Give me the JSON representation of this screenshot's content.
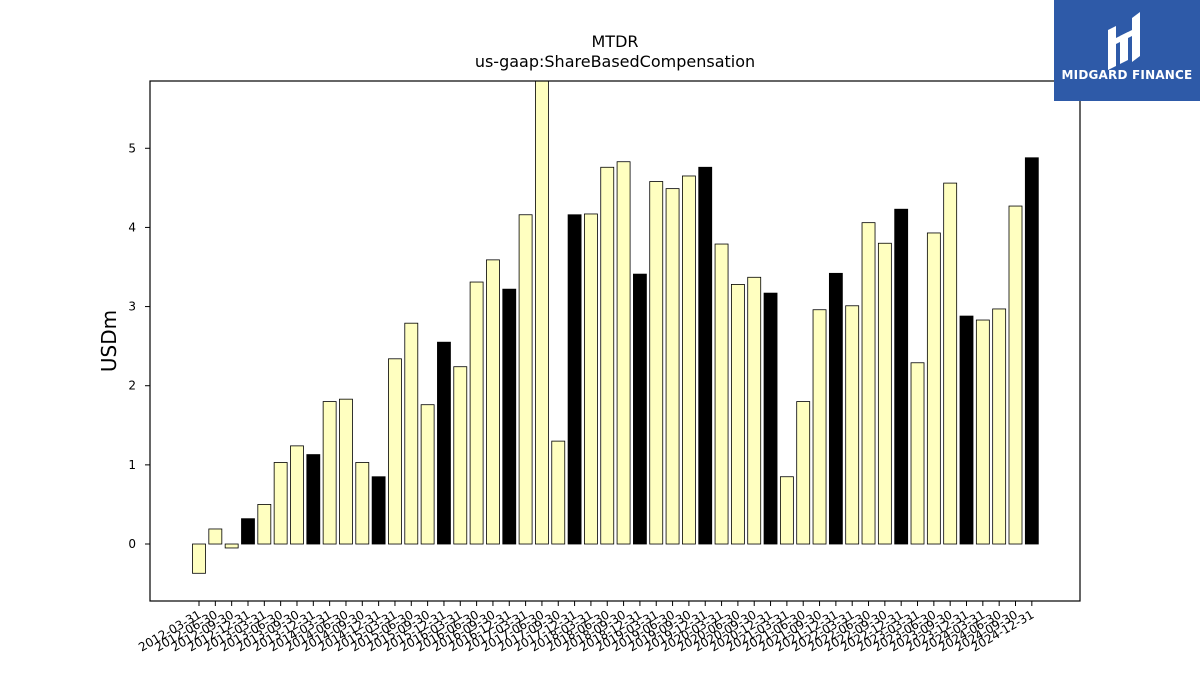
{
  "chart_data": {
    "type": "bar",
    "title": "MTDR",
    "subtitle": "us-gaap:ShareBasedCompensation",
    "xlabel": "",
    "ylabel": "USDm",
    "ylim": [
      -0.72,
      5.85
    ],
    "yticks": [
      0,
      1,
      2,
      3,
      4,
      5
    ],
    "grid": false,
    "categories": [
      "2012-03-31",
      "2012-06-30",
      "2012-09-30",
      "2012-12-31",
      "2013-03-31",
      "2013-06-30",
      "2013-09-30",
      "2013-12-31",
      "2014-03-31",
      "2014-06-30",
      "2014-09-30",
      "2014-12-31",
      "2015-03-31",
      "2015-06-30",
      "2015-09-30",
      "2015-12-31",
      "2016-03-31",
      "2016-06-30",
      "2016-09-30",
      "2016-12-31",
      "2017-03-31",
      "2017-06-30",
      "2017-09-30",
      "2017-12-31",
      "2018-03-31",
      "2018-06-30",
      "2018-09-30",
      "2018-12-31",
      "2019-03-31",
      "2019-06-30",
      "2019-09-30",
      "2019-12-31",
      "2020-03-31",
      "2020-06-30",
      "2020-09-30",
      "2020-12-31",
      "2021-03-31",
      "2021-06-30",
      "2021-09-30",
      "2021-12-31",
      "2022-03-31",
      "2022-06-30",
      "2022-09-30",
      "2022-12-31",
      "2023-03-31",
      "2023-06-30",
      "2023-09-30",
      "2023-12-31",
      "2024-03-31",
      "2024-06-30",
      "2024-09-30",
      "2024-12-31"
    ],
    "values": [
      -0.37,
      0.19,
      -0.05,
      0.32,
      0.5,
      1.03,
      1.24,
      1.13,
      1.8,
      1.83,
      1.03,
      0.85,
      2.34,
      2.79,
      1.76,
      2.55,
      2.24,
      3.31,
      3.59,
      3.22,
      4.16,
      5.9,
      1.3,
      4.16,
      4.17,
      4.76,
      4.83,
      3.41,
      4.58,
      4.49,
      4.65,
      4.76,
      3.79,
      3.28,
      3.37,
      3.17,
      0.85,
      1.8,
      2.96,
      3.42,
      3.01,
      4.06,
      3.8,
      4.23,
      2.29,
      3.93,
      4.56,
      2.88,
      2.83,
      2.97,
      4.27,
      4.88
    ],
    "year_end_color": "#000000",
    "bar_color": "#ffffc0"
  },
  "logo": {
    "text": "MIDGARD FINANCE",
    "background": "#2e5aa8"
  }
}
